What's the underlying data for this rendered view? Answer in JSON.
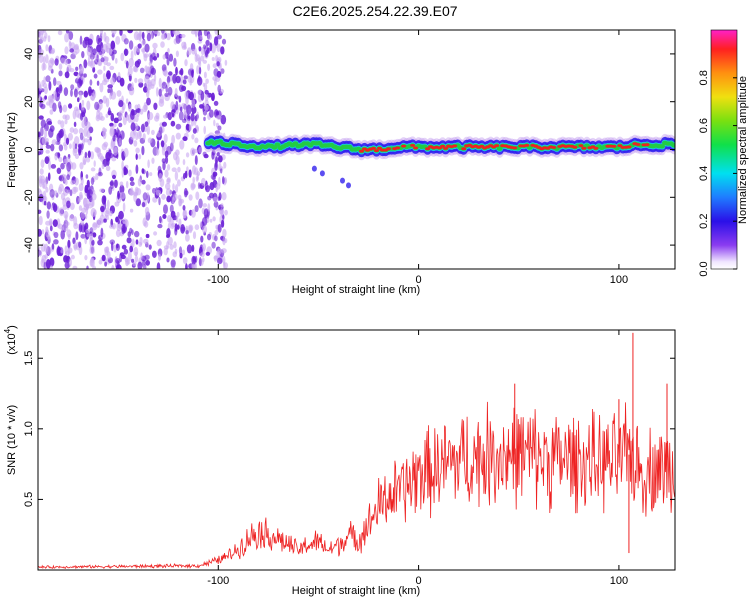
{
  "title": "C2E6.2025.254.22.39.E07",
  "colors": {
    "snr_line": "#ee2222",
    "waterfall_core": "#ee2222",
    "waterfall_mid": "#22cc44",
    "waterfall_edge": "#3322ee",
    "noise": "#6a1fd6",
    "noise_light": "#c9a8f2"
  },
  "chart_data": [
    {
      "type": "heatmap",
      "name": "spectrogram",
      "xlabel": "Height of straight line (km)",
      "ylabel": "Frequency (Hz)",
      "xlim": [
        -190,
        128
      ],
      "ylim": [
        -50,
        50
      ],
      "xticks": [
        -100,
        0,
        100
      ],
      "xtick_labels": [
        "-100",
        "0",
        "100"
      ],
      "yticks": [
        -40,
        -20,
        0,
        20,
        40
      ],
      "ytick_labels": [
        "-40",
        "-20",
        "0",
        "20",
        "40"
      ],
      "colorbar": {
        "label": "Normalized spectral amplitude",
        "range": [
          0,
          1
        ],
        "ticks": [
          0.0,
          0.2,
          0.4,
          0.6,
          0.8
        ],
        "tick_labels": [
          "0.0",
          "0.2",
          "0.4",
          "0.6",
          "0.8"
        ]
      },
      "noise_region_x": [
        -190,
        -100
      ],
      "signal_track": {
        "x": [
          -105,
          -90,
          -75,
          -60,
          -50,
          -40,
          -30,
          -20,
          -10,
          0,
          20,
          40,
          60,
          80,
          100,
          110,
          128
        ],
        "freq_hz": [
          3,
          2,
          1,
          2,
          2,
          1,
          0,
          0,
          1,
          1,
          1,
          1,
          1,
          1,
          1,
          2,
          2
        ],
        "peak_amplitude": [
          0.35,
          0.45,
          0.5,
          0.55,
          0.55,
          0.6,
          0.7,
          0.8,
          0.85,
          0.9,
          0.9,
          0.85,
          0.85,
          0.85,
          0.85,
          0.75,
          0.55
        ]
      }
    },
    {
      "type": "line",
      "name": "snr",
      "xlabel": "Height of straight line (km)",
      "ylabel": "SNR (10 * v/v)",
      "multiplier_prefix": "(x10",
      "multiplier_exponent": "4",
      "multiplier_suffix": ")",
      "xlim": [
        -190,
        128
      ],
      "ylim": [
        0,
        1.7
      ],
      "xticks": [
        -100,
        0,
        100
      ],
      "xtick_labels": [
        "-100",
        "0",
        "100"
      ],
      "yticks": [
        0.5,
        1.0,
        1.5
      ],
      "ytick_labels": [
        "0.5",
        "1.0",
        "1.5"
      ],
      "series": [
        {
          "name": "SNR",
          "x": [
            -190,
            -110,
            -100,
            -95,
            -90,
            -85,
            -80,
            -75,
            -70,
            -65,
            -60,
            -55,
            -50,
            -45,
            -40,
            -35,
            -30,
            -25,
            -20,
            -15,
            -10,
            -5,
            0,
            10,
            20,
            30,
            40,
            50,
            60,
            70,
            80,
            90,
            100,
            107,
            110,
            120,
            128
          ],
          "values": [
            0.02,
            0.03,
            0.07,
            0.1,
            0.15,
            0.22,
            0.28,
            0.25,
            0.22,
            0.18,
            0.14,
            0.18,
            0.2,
            0.14,
            0.18,
            0.24,
            0.22,
            0.32,
            0.45,
            0.52,
            0.55,
            0.6,
            0.68,
            0.72,
            0.78,
            0.8,
            0.82,
            0.82,
            0.8,
            0.78,
            0.78,
            0.76,
            0.76,
            0.84,
            0.7,
            0.72,
            0.7
          ]
        }
      ],
      "spikes": [
        {
          "x": 107,
          "value": 1.68
        },
        {
          "x": 48,
          "value": 1.32
        },
        {
          "x": 124,
          "value": 1.32
        },
        {
          "x": 100,
          "value": 1.21
        },
        {
          "x": 105,
          "value": 0.12
        }
      ]
    }
  ]
}
